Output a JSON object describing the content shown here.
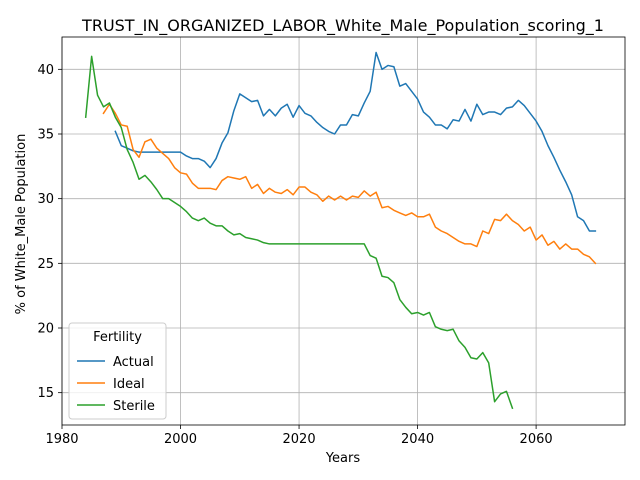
{
  "chart_data": {
    "type": "line",
    "title": "TRUST_IN_ORGANIZED_LABOR_White_Male_Population_scoring_1",
    "xlabel": "Years",
    "ylabel": "% of White_Male Population",
    "xlim": [
      1980,
      2075
    ],
    "ylim": [
      12.5,
      42.5
    ],
    "xticks": [
      1980,
      2000,
      2020,
      2040,
      2060
    ],
    "yticks": [
      15,
      20,
      25,
      30,
      35,
      40
    ],
    "grid": true,
    "legend": {
      "title": "Fertility",
      "placement": "lower-left"
    },
    "series": [
      {
        "name": "Actual",
        "color": "#1f77b4",
        "x": [
          1989,
          1990,
          1991,
          1992,
          1993,
          1994,
          1995,
          1996,
          1997,
          1998,
          1999,
          2000,
          2001,
          2002,
          2003,
          2004,
          2005,
          2006,
          2007,
          2008,
          2009,
          2010,
          2011,
          2012,
          2013,
          2014,
          2015,
          2016,
          2017,
          2018,
          2019,
          2020,
          2021,
          2022,
          2023,
          2024,
          2025,
          2026,
          2027,
          2028,
          2029,
          2030,
          2031,
          2032,
          2033,
          2034,
          2035,
          2036,
          2037,
          2038,
          2039,
          2040,
          2041,
          2042,
          2043,
          2044,
          2045,
          2046,
          2047,
          2048,
          2049,
          2050,
          2051,
          2052,
          2053,
          2054,
          2055,
          2056,
          2057,
          2058,
          2059,
          2060,
          2061,
          2062,
          2063,
          2064,
          2065,
          2066,
          2067,
          2068,
          2069,
          2070
        ],
        "y": [
          35.2,
          34.1,
          33.9,
          33.7,
          33.6,
          33.6,
          33.6,
          33.6,
          33.6,
          33.6,
          33.6,
          33.6,
          33.3,
          33.1,
          33.1,
          32.9,
          32.4,
          33.1,
          34.3,
          35.1,
          36.8,
          38.1,
          37.8,
          37.5,
          37.6,
          36.4,
          36.9,
          36.4,
          37.0,
          37.3,
          36.3,
          37.2,
          36.6,
          36.4,
          35.9,
          35.5,
          35.2,
          35.0,
          35.7,
          35.7,
          36.5,
          36.4,
          37.4,
          38.3,
          41.3,
          40.0,
          40.3,
          40.2,
          38.7,
          38.9,
          38.3,
          37.7,
          36.7,
          36.3,
          35.7,
          35.7,
          35.4,
          36.1,
          36.0,
          36.9,
          36.0,
          37.3,
          36.5,
          36.7,
          36.7,
          36.5,
          37.0,
          37.1,
          37.6,
          37.2,
          36.6,
          36.0,
          35.2,
          34.1,
          33.2,
          32.2,
          31.3,
          30.3,
          28.6,
          28.3,
          27.5,
          27.5
        ]
      },
      {
        "name": "Ideal",
        "color": "#ff7f0e",
        "x": [
          1987,
          1988,
          1989,
          1990,
          1991,
          1992,
          1993,
          1994,
          1995,
          1996,
          1997,
          1998,
          1999,
          2000,
          2001,
          2002,
          2003,
          2004,
          2005,
          2006,
          2007,
          2008,
          2009,
          2010,
          2011,
          2012,
          2013,
          2014,
          2015,
          2016,
          2017,
          2018,
          2019,
          2020,
          2021,
          2022,
          2023,
          2024,
          2025,
          2026,
          2027,
          2028,
          2029,
          2030,
          2031,
          2032,
          2033,
          2034,
          2035,
          2036,
          2037,
          2038,
          2039,
          2040,
          2041,
          2042,
          2043,
          2044,
          2045,
          2046,
          2047,
          2048,
          2049,
          2050,
          2051,
          2052,
          2053,
          2054,
          2055,
          2056,
          2057,
          2058,
          2059,
          2060,
          2061,
          2062,
          2063,
          2064,
          2065,
          2066,
          2067,
          2068,
          2069,
          2070
        ],
        "y": [
          36.6,
          37.3,
          36.6,
          35.7,
          35.6,
          33.8,
          33.2,
          34.4,
          34.6,
          33.9,
          33.5,
          33.1,
          32.4,
          32.0,
          31.9,
          31.2,
          30.8,
          30.8,
          30.8,
          30.7,
          31.4,
          31.7,
          31.6,
          31.5,
          31.7,
          30.8,
          31.1,
          30.4,
          30.8,
          30.5,
          30.4,
          30.7,
          30.3,
          30.9,
          30.9,
          30.5,
          30.3,
          29.8,
          30.2,
          29.9,
          30.2,
          29.9,
          30.2,
          30.1,
          30.6,
          30.2,
          30.5,
          29.3,
          29.4,
          29.1,
          28.9,
          28.7,
          28.9,
          28.6,
          28.6,
          28.8,
          27.8,
          27.5,
          27.3,
          27.0,
          26.7,
          26.5,
          26.5,
          26.3,
          27.5,
          27.3,
          28.4,
          28.3,
          28.8,
          28.3,
          28.0,
          27.5,
          27.8,
          26.8,
          27.2,
          26.4,
          26.7,
          26.1,
          26.5,
          26.1,
          26.1,
          25.7,
          25.5,
          25.0
        ]
      },
      {
        "name": "Sterile",
        "color": "#2ca02c",
        "x": [
          1984,
          1985,
          1986,
          1987,
          1988,
          1989,
          1990,
          1991,
          1992,
          1993,
          1994,
          1995,
          1996,
          1997,
          1998,
          1999,
          2000,
          2001,
          2002,
          2003,
          2004,
          2005,
          2006,
          2007,
          2008,
          2009,
          2010,
          2011,
          2012,
          2013,
          2014,
          2015,
          2016,
          2017,
          2018,
          2019,
          2020,
          2021,
          2022,
          2023,
          2024,
          2025,
          2026,
          2027,
          2028,
          2029,
          2030,
          2031,
          2032,
          2033,
          2034,
          2035,
          2036,
          2037,
          2038,
          2039,
          2040,
          2041,
          2042,
          2043,
          2044,
          2045,
          2046,
          2047,
          2048,
          2049,
          2050,
          2051,
          2052,
          2053,
          2054,
          2055,
          2056
        ],
        "y": [
          36.3,
          41.0,
          38.0,
          37.1,
          37.4,
          36.3,
          35.5,
          33.8,
          32.8,
          31.5,
          31.8,
          31.3,
          30.7,
          30.0,
          30.0,
          29.7,
          29.4,
          29.0,
          28.5,
          28.3,
          28.5,
          28.1,
          27.9,
          27.9,
          27.5,
          27.2,
          27.3,
          27.0,
          26.9,
          26.8,
          26.6,
          26.5,
          26.5,
          26.5,
          26.5,
          26.5,
          26.5,
          26.5,
          26.5,
          26.5,
          26.5,
          26.5,
          26.5,
          26.5,
          26.5,
          26.5,
          26.5,
          26.5,
          25.6,
          25.4,
          24.0,
          23.9,
          23.5,
          22.2,
          21.6,
          21.1,
          21.2,
          21.0,
          21.2,
          20.1,
          19.9,
          19.8,
          19.9,
          19.0,
          18.5,
          17.7,
          17.6,
          18.1,
          17.3,
          14.3,
          14.9,
          15.1,
          13.8
        ]
      }
    ]
  }
}
